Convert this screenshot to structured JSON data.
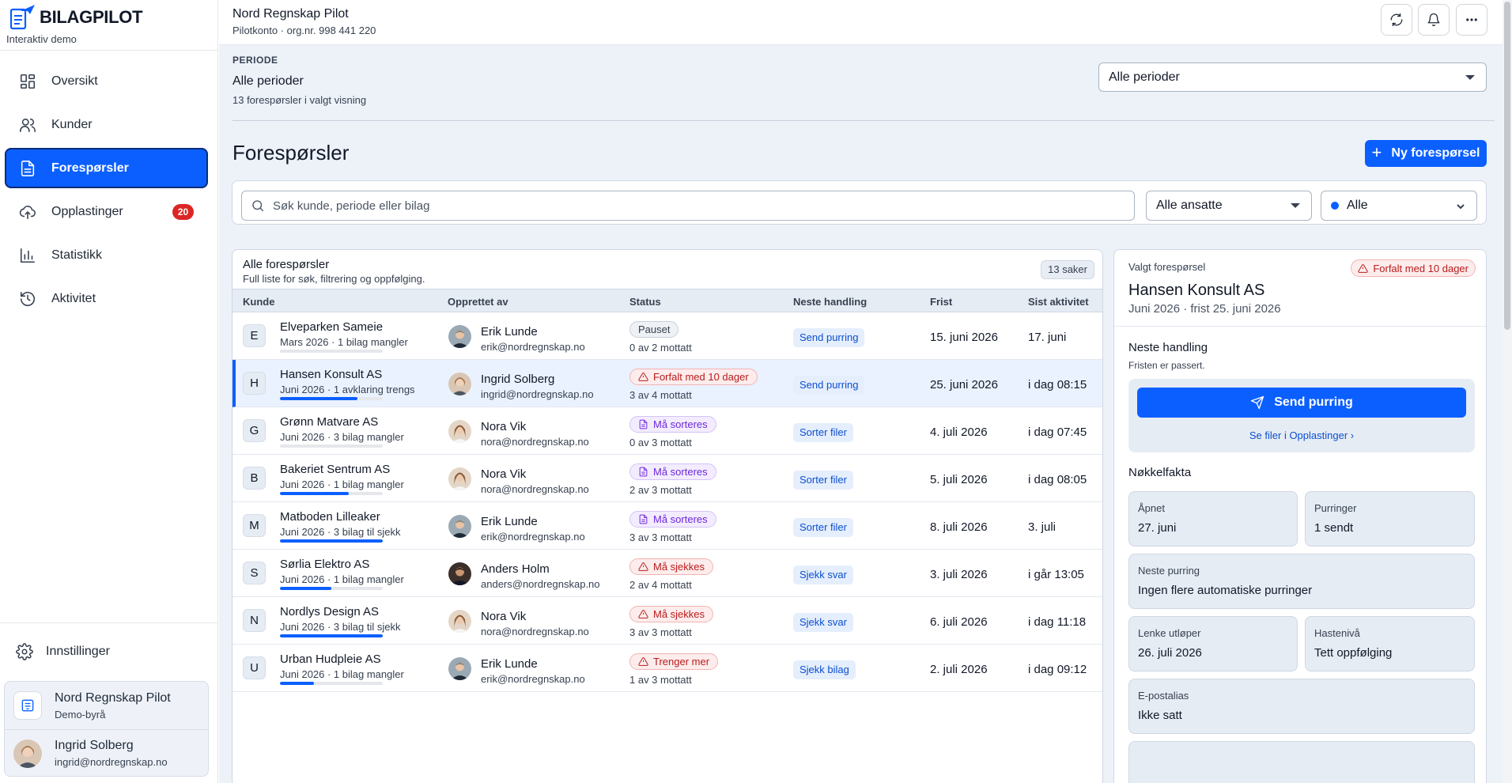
{
  "brand": {
    "name": "BILAGPILOT",
    "subtitle": "Interaktiv demo"
  },
  "nav": [
    {
      "label": "Oversikt",
      "icon": "grid-icon"
    },
    {
      "label": "Kunder",
      "icon": "users-icon"
    },
    {
      "label": "Forespørsler",
      "icon": "document-icon",
      "active": true
    },
    {
      "label": "Opplastinger",
      "icon": "upload-icon",
      "badge": "20"
    },
    {
      "label": "Statistikk",
      "icon": "bar-chart-icon"
    },
    {
      "label": "Aktivitet",
      "icon": "history-icon"
    }
  ],
  "settings_label": "Innstillinger",
  "account": {
    "org": {
      "name": "Nord Regnskap Pilot",
      "sub": "Demo-byrå"
    },
    "user": {
      "name": "Ingrid Solberg",
      "email": "ingrid@nordregnskap.no"
    }
  },
  "topbar": {
    "org_name": "Nord Regnskap Pilot",
    "org_sub": "Pilotkonto · org.nr. 998 441 220"
  },
  "period": {
    "label": "PERIODE",
    "value": "Alle perioder",
    "count": "13 forespørsler i valgt visning",
    "select_value": "Alle perioder"
  },
  "page_title": "Forespørsler",
  "new_button": "Ny forespørsel",
  "filters": {
    "search_placeholder": "Søk kunde, periode eller bilag",
    "employee_select": "Alle ansatte",
    "status_select": "Alle"
  },
  "list": {
    "title": "Alle forespørsler",
    "subtitle": "Full liste for søk, filtrering og oppfølging.",
    "count": "13 saker",
    "columns": [
      "Kunde",
      "Opprettet av",
      "Status",
      "Neste handling",
      "Frist",
      "Sist aktivitet"
    ],
    "rows": [
      {
        "letter": "E",
        "name": "Elveparken Sameie",
        "meta": "Mars 2026 · 1 bilag mangler",
        "progress": 0,
        "person": "Erik Lunde",
        "email": "erik@nordregnskap.no",
        "avatar": "erik",
        "status": "Pauset",
        "status_kind": "paused",
        "received": "0 av 2 mottatt",
        "action": "Send purring",
        "due": "15. juni 2026",
        "last": "17. juni"
      },
      {
        "letter": "H",
        "name": "Hansen Konsult AS",
        "meta": "Juni 2026 · 1 avklaring trengs",
        "progress": 0.75,
        "person": "Ingrid Solberg",
        "email": "ingrid@nordregnskap.no",
        "avatar": "ingrid",
        "status": "Forfalt med 10 dager",
        "status_kind": "danger",
        "received": "3 av 4 mottatt",
        "action": "Send purring",
        "due": "25. juni 2026",
        "last": "i dag 08:15",
        "selected": true
      },
      {
        "letter": "G",
        "name": "Grønn Matvare AS",
        "meta": "Juni 2026 · 3 bilag mangler",
        "progress": 0,
        "person": "Nora Vik",
        "email": "nora@nordregnskap.no",
        "avatar": "nora",
        "status": "Må sorteres",
        "status_kind": "sort",
        "received": "0 av 3 mottatt",
        "action": "Sorter filer",
        "due": "4. juli 2026",
        "last": "i dag 07:45"
      },
      {
        "letter": "B",
        "name": "Bakeriet Sentrum AS",
        "meta": "Juni 2026 · 1 bilag mangler",
        "progress": 0.67,
        "person": "Nora Vik",
        "email": "nora@nordregnskap.no",
        "avatar": "nora",
        "status": "Må sorteres",
        "status_kind": "sort",
        "received": "2 av 3 mottatt",
        "action": "Sorter filer",
        "due": "5. juli 2026",
        "last": "i dag 08:05"
      },
      {
        "letter": "M",
        "name": "Matboden Lilleaker",
        "meta": "Juni 2026 · 3 bilag til sjekk",
        "progress": 1,
        "person": "Erik Lunde",
        "email": "erik@nordregnskap.no",
        "avatar": "erik",
        "status": "Må sorteres",
        "status_kind": "sort",
        "received": "3 av 3 mottatt",
        "action": "Sorter filer",
        "due": "8. juli 2026",
        "last": "3. juli"
      },
      {
        "letter": "S",
        "name": "Sørlia Elektro AS",
        "meta": "Juni 2026 · 1 bilag mangler",
        "progress": 0.5,
        "person": "Anders Holm",
        "email": "anders@nordregnskap.no",
        "avatar": "anders",
        "status": "Må sjekkes",
        "status_kind": "danger",
        "received": "2 av 4 mottatt",
        "action": "Sjekk svar",
        "due": "3. juli 2026",
        "last": "i går 13:05"
      },
      {
        "letter": "N",
        "name": "Nordlys Design AS",
        "meta": "Juni 2026 · 3 bilag til sjekk",
        "progress": 1,
        "person": "Nora Vik",
        "email": "nora@nordregnskap.no",
        "avatar": "nora",
        "status": "Må sjekkes",
        "status_kind": "danger",
        "received": "3 av 3 mottatt",
        "action": "Sjekk svar",
        "due": "6. juli 2026",
        "last": "i dag 11:18"
      },
      {
        "letter": "U",
        "name": "Urban Hudpleie AS",
        "meta": "Juni 2026 · 1 bilag mangler",
        "progress": 0.33,
        "person": "Erik Lunde",
        "email": "erik@nordregnskap.no",
        "avatar": "erik",
        "status": "Trenger mer",
        "status_kind": "danger",
        "received": "1 av 3 mottatt",
        "action": "Sjekk bilag",
        "due": "2. juli 2026",
        "last": "i dag 09:12"
      }
    ]
  },
  "detail": {
    "label": "Valgt forespørsel",
    "badge": "Forfalt med 10 dager",
    "title": "Hansen Konsult AS",
    "sub": "Juni 2026 · frist 25. juni 2026",
    "next_heading": "Neste handling",
    "next_sub": "Fristen er passert.",
    "send_button": "Send purring",
    "see_files": "Se filer i Opplastinger ›",
    "facts_heading": "Nøkkelfakta",
    "facts": {
      "opened_label": "Åpnet",
      "opened": "27. juni",
      "reminders_label": "Purringer",
      "reminders": "1 sendt",
      "next_reminder_label": "Neste purring",
      "next_reminder": "Ingen flere automatiske purringer",
      "link_label": "Lenke utløper",
      "link": "26. juli 2026",
      "urgency_label": "Hastenivå",
      "urgency": "Tett oppfølging",
      "epost_label": "E-postalias",
      "epost": "Ikke satt"
    }
  },
  "colors": {
    "accent": "#0b5fff",
    "danger": "#b91c1c",
    "sort": "#6d28d9",
    "badge": "#dc2626"
  }
}
